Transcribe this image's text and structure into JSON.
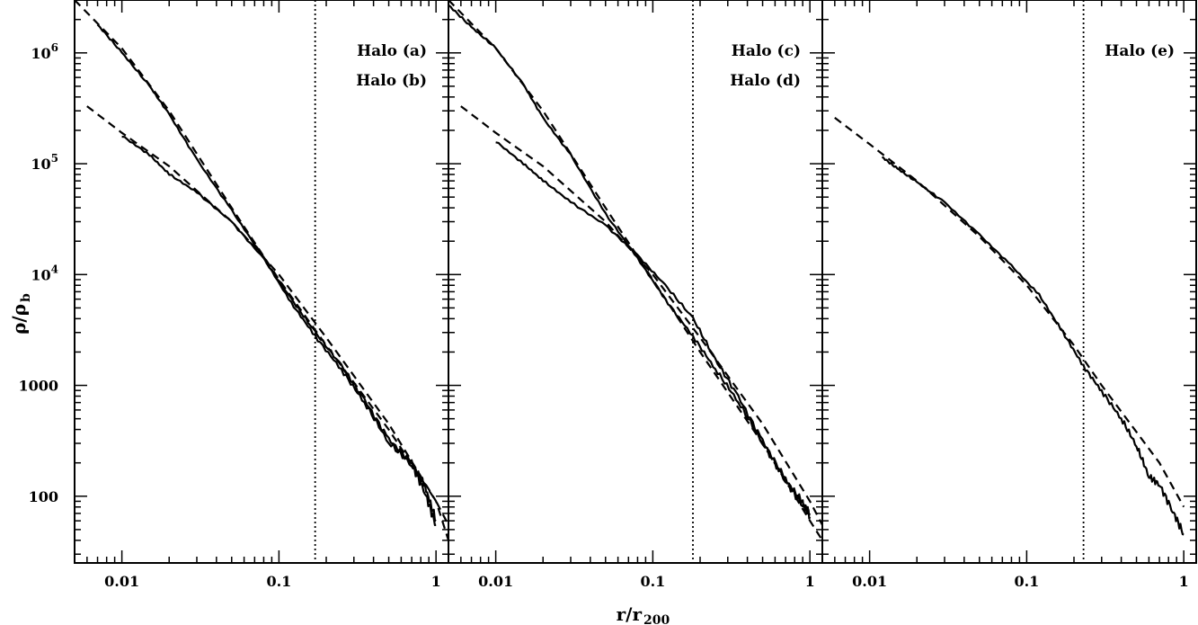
{
  "figure": {
    "xlabel": "r/r",
    "xlabel_sub": "200",
    "ylabel": "ρ/ρ",
    "ylabel_sub": "b"
  },
  "chart_data": [
    {
      "type": "line",
      "panel": "left",
      "xscale": "log",
      "yscale": "log",
      "xlim": [
        0.005,
        1.2
      ],
      "ylim": [
        25,
        3000000
      ],
      "x_ticks": [
        0.01,
        0.1,
        1
      ],
      "x_tick_labels": [
        "0.01",
        "0.1",
        "1"
      ],
      "y_ticks": [
        100,
        1000,
        10000,
        100000,
        1000000
      ],
      "y_tick_labels": [
        {
          "base": "100",
          "exp": ""
        },
        {
          "base": "1000",
          "exp": ""
        },
        {
          "base": "10",
          "exp": "4"
        },
        {
          "base": "10",
          "exp": "5"
        },
        {
          "base": "10",
          "exp": "6"
        }
      ],
      "annotations": [
        "Halo (a)",
        "Halo (b)"
      ],
      "vline": 0.17,
      "series": [
        {
          "style": "solid",
          "x": [
            0.007,
            0.01,
            0.015,
            0.02,
            0.03,
            0.05,
            0.08,
            0.12,
            0.17,
            0.25,
            0.35,
            0.5,
            0.7,
            0.85,
            1.0
          ],
          "y": [
            1800000,
            1000000,
            500000,
            280000,
            110000,
            38000,
            14000,
            5500,
            2800,
            1400,
            700,
            300,
            190,
            110,
            55
          ]
        },
        {
          "style": "solid",
          "x": [
            0.01,
            0.015,
            0.02,
            0.03,
            0.05,
            0.08,
            0.12,
            0.17,
            0.25,
            0.35,
            0.5,
            0.7,
            0.85,
            1.0
          ],
          "y": [
            180000,
            120000,
            80000,
            55000,
            30000,
            14000,
            6000,
            3000,
            1500,
            750,
            330,
            200,
            120,
            60
          ]
        },
        {
          "style": "dashed",
          "x": [
            0.005,
            0.01,
            0.02,
            0.05,
            0.1,
            0.2,
            0.5,
            1.0,
            1.2
          ],
          "y": [
            3000000,
            1100000,
            300000,
            40000,
            9000,
            2300,
            400,
            90,
            55
          ]
        },
        {
          "style": "dashed",
          "x": [
            0.006,
            0.01,
            0.02,
            0.05,
            0.1,
            0.2,
            0.5,
            1.0,
            1.2
          ],
          "y": [
            330000,
            190000,
            95000,
            30000,
            10000,
            2700,
            450,
            90,
            40
          ]
        }
      ]
    },
    {
      "type": "line",
      "panel": "middle",
      "xscale": "log",
      "yscale": "log",
      "xlim": [
        0.005,
        1.2
      ],
      "ylim": [
        25,
        3000000
      ],
      "x_ticks": [
        0.01,
        0.1,
        1
      ],
      "x_tick_labels": [
        "0.01",
        "0.1",
        "1"
      ],
      "annotations": [
        "Halo (c)",
        "Halo (d)"
      ],
      "vline": 0.18,
      "series": [
        {
          "style": "solid",
          "x": [
            0.005,
            0.007,
            0.01,
            0.015,
            0.02,
            0.03,
            0.05,
            0.08,
            0.12,
            0.18,
            0.25,
            0.35,
            0.5,
            0.7,
            0.9,
            1.0
          ],
          "y": [
            2700000,
            1700000,
            1100000,
            520000,
            260000,
            120000,
            35000,
            14000,
            6000,
            2800,
            1400,
            700,
            300,
            140,
            85,
            70
          ]
        },
        {
          "style": "solid",
          "x": [
            0.01,
            0.015,
            0.02,
            0.03,
            0.05,
            0.08,
            0.12,
            0.18,
            0.25,
            0.35,
            0.5,
            0.7,
            0.9,
            1.0
          ],
          "y": [
            160000,
            100000,
            70000,
            45000,
            28000,
            15000,
            8000,
            4000,
            1700,
            800,
            320,
            140,
            85,
            65
          ]
        },
        {
          "style": "dashed",
          "x": [
            0.005,
            0.01,
            0.02,
            0.05,
            0.1,
            0.2,
            0.5,
            1.0,
            1.2
          ],
          "y": [
            3000000,
            1100000,
            300000,
            40000,
            9000,
            2000,
            300,
            60,
            40
          ]
        },
        {
          "style": "dashed",
          "x": [
            0.006,
            0.01,
            0.02,
            0.05,
            0.1,
            0.2,
            0.5,
            1.0,
            1.2
          ],
          "y": [
            330000,
            190000,
            95000,
            30000,
            10000,
            2700,
            450,
            90,
            55
          ]
        }
      ]
    },
    {
      "type": "line",
      "panel": "right",
      "xscale": "log",
      "yscale": "log",
      "xlim": [
        0.005,
        1.2
      ],
      "ylim": [
        25,
        3000000
      ],
      "x_ticks": [
        0.01,
        0.1,
        1
      ],
      "x_tick_labels": [
        "0.01",
        "0.1",
        "1"
      ],
      "annotations": [
        "Halo (e)"
      ],
      "vline": 0.23,
      "series": [
        {
          "style": "solid",
          "x": [
            0.012,
            0.015,
            0.02,
            0.03,
            0.05,
            0.08,
            0.12,
            0.17,
            0.23,
            0.3,
            0.4,
            0.5,
            0.6,
            0.7,
            0.85,
            1.0
          ],
          "y": [
            115000,
            90000,
            68000,
            45000,
            23000,
            12000,
            6500,
            3000,
            1500,
            900,
            500,
            280,
            150,
            130,
            75,
            45
          ]
        },
        {
          "style": "dashed",
          "x": [
            0.006,
            0.01,
            0.02,
            0.05,
            0.1,
            0.2,
            0.3,
            0.5,
            0.7,
            1.0
          ],
          "y": [
            260000,
            150000,
            70000,
            22000,
            8000,
            2300,
            1000,
            380,
            200,
            80
          ]
        }
      ]
    }
  ]
}
